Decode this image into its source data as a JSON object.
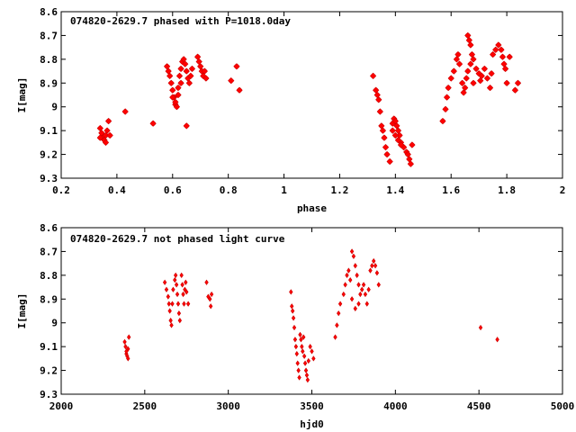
{
  "chart_data": [
    {
      "type": "scatter",
      "title": "074820-2629.7 phased with P=1018.0day",
      "xlabel": "phase",
      "ylabel": "I[mag]",
      "xlim": [
        0.2,
        2.0
      ],
      "ylim": [
        8.6,
        9.3
      ],
      "y_inverted": true,
      "xticks": [
        0.2,
        0.4,
        0.6,
        0.8,
        1,
        1.2,
        1.4,
        1.6,
        1.8,
        2
      ],
      "xtick_labels": [
        "0.2",
        "0.4",
        "0.6",
        "0.8",
        "1",
        "1.2",
        "1.4",
        "1.6",
        "1.8",
        "2"
      ],
      "yticks": [
        8.6,
        8.7,
        8.8,
        8.9,
        9.0,
        9.1,
        9.2,
        9.3
      ],
      "ytick_labels": [
        "8.6",
        "8.7",
        "8.8",
        "8.9",
        "9",
        "9.1",
        "9.2",
        "9.3"
      ],
      "color": "#ff0000",
      "series": [
        {
          "x": [
            0.34,
            0.345,
            0.35,
            0.355,
            0.36,
            0.365,
            0.37,
            0.34,
            0.36,
            0.375,
            0.43,
            0.53,
            0.58,
            0.585,
            0.59,
            0.595,
            0.6,
            0.605,
            0.61,
            0.615,
            0.62,
            0.625,
            0.63,
            0.635,
            0.64,
            0.645,
            0.65,
            0.655,
            0.66,
            0.665,
            0.67,
            0.6,
            0.61,
            0.62,
            0.63,
            0.65,
            0.69,
            0.695,
            0.7,
            0.705,
            0.71,
            0.715,
            0.72,
            0.81,
            0.83,
            0.84,
            1.32,
            1.33,
            1.335,
            1.34,
            1.345,
            1.35,
            1.355,
            1.36,
            1.365,
            1.37,
            1.38,
            1.39,
            1.395,
            1.4,
            1.405,
            1.41,
            1.415,
            1.42,
            1.43,
            1.44,
            1.445,
            1.45,
            1.455,
            1.46,
            1.39,
            1.4,
            1.41,
            1.42,
            1.57,
            1.58,
            1.585,
            1.59,
            1.6,
            1.61,
            1.62,
            1.625,
            1.63,
            1.64,
            1.645,
            1.65,
            1.655,
            1.66,
            1.665,
            1.67,
            1.675,
            1.68,
            1.69,
            1.7,
            1.705,
            1.71,
            1.72,
            1.73,
            1.74,
            1.745,
            1.75,
            1.76,
            1.77,
            1.78,
            1.785,
            1.79,
            1.795,
            1.8,
            1.81,
            1.83,
            1.84,
            1.66,
            1.67,
            1.68
          ],
          "y": [
            9.09,
            9.11,
            9.13,
            9.14,
            9.12,
            9.1,
            9.06,
            9.13,
            9.15,
            9.12,
            9.02,
            9.07,
            8.83,
            8.85,
            8.87,
            8.9,
            8.93,
            8.96,
            8.99,
            9.0,
            8.92,
            8.87,
            8.84,
            8.81,
            8.8,
            8.82,
            8.85,
            8.88,
            8.9,
            8.87,
            8.84,
            8.96,
            8.98,
            8.95,
            8.9,
            9.08,
            8.79,
            8.81,
            8.83,
            8.85,
            8.87,
            8.85,
            8.88,
            8.89,
            8.83,
            8.93,
            8.87,
            8.93,
            8.95,
            8.97,
            9.02,
            9.08,
            9.1,
            9.13,
            9.17,
            9.2,
            9.23,
            9.07,
            9.05,
            9.06,
            9.08,
            9.1,
            9.12,
            9.15,
            9.17,
            9.19,
            9.2,
            9.22,
            9.24,
            9.16,
            9.1,
            9.12,
            9.14,
            9.16,
            9.06,
            9.01,
            8.96,
            8.92,
            8.88,
            8.85,
            8.8,
            8.78,
            8.82,
            8.9,
            8.94,
            8.92,
            8.88,
            8.7,
            8.72,
            8.74,
            8.78,
            8.8,
            8.84,
            8.86,
            8.89,
            8.87,
            8.84,
            8.88,
            8.92,
            8.86,
            8.78,
            8.76,
            8.74,
            8.76,
            8.79,
            8.82,
            8.84,
            8.9,
            8.79,
            8.93,
            8.9,
            8.85,
            8.82,
            8.9
          ],
          "marker": "star"
        }
      ]
    },
    {
      "type": "scatter",
      "title": "074820-2629.7 not phased light curve",
      "xlabel": "hjd0",
      "ylabel": "I[mag]",
      "xlim": [
        2000,
        5000
      ],
      "ylim": [
        8.6,
        9.3
      ],
      "y_inverted": true,
      "xticks": [
        2000,
        2500,
        3000,
        3500,
        4000,
        4500,
        5000
      ],
      "xtick_labels": [
        "2000",
        "2500",
        "3000",
        "3500",
        "4000",
        "4500",
        "5000"
      ],
      "yticks": [
        8.6,
        8.7,
        8.8,
        8.9,
        9.0,
        9.1,
        9.2,
        9.3
      ],
      "ytick_labels": [
        "8.6",
        "8.7",
        "8.8",
        "8.9",
        "9",
        "9.1",
        "9.2",
        "9.3"
      ],
      "color": "#ff0000",
      "series": [
        {
          "x": [
            2380,
            2385,
            2390,
            2395,
            2400,
            2405,
            2390,
            2400,
            2620,
            2630,
            2640,
            2645,
            2650,
            2655,
            2660,
            2665,
            2670,
            2680,
            2685,
            2690,
            2695,
            2700,
            2705,
            2710,
            2720,
            2725,
            2730,
            2735,
            2740,
            2745,
            2750,
            2760,
            2870,
            2880,
            2890,
            2895,
            2900,
            3375,
            3380,
            3385,
            3390,
            3395,
            3400,
            3405,
            3410,
            3415,
            3420,
            3425,
            3430,
            3435,
            3440,
            3445,
            3450,
            3455,
            3460,
            3465,
            3470,
            3475,
            3480,
            3490,
            3500,
            3510,
            3640,
            3650,
            3660,
            3670,
            3690,
            3700,
            3710,
            3720,
            3730,
            3740,
            3750,
            3760,
            3770,
            3780,
            3790,
            3800,
            3810,
            3820,
            3830,
            3840,
            3850,
            3860,
            3870,
            3880,
            3890,
            3900,
            3740,
            3760,
            3780,
            4510,
            4610
          ],
          "y": [
            9.08,
            9.1,
            9.13,
            9.14,
            9.11,
            9.06,
            9.12,
            9.15,
            8.83,
            8.86,
            8.89,
            8.92,
            8.95,
            8.99,
            9.01,
            8.92,
            8.86,
            8.82,
            8.8,
            8.84,
            8.88,
            8.92,
            8.96,
            8.99,
            8.8,
            8.84,
            8.88,
            8.92,
            8.86,
            8.83,
            8.87,
            8.92,
            8.83,
            8.89,
            8.9,
            8.93,
            8.88,
            8.87,
            8.93,
            8.95,
            8.98,
            9.02,
            9.07,
            9.1,
            9.13,
            9.17,
            9.2,
            9.23,
            9.05,
            9.07,
            9.1,
            9.12,
            9.06,
            9.14,
            9.17,
            9.2,
            9.22,
            9.24,
            9.16,
            9.1,
            9.12,
            9.15,
            9.06,
            9.01,
            8.96,
            8.92,
            8.88,
            8.84,
            8.8,
            8.78,
            8.82,
            8.7,
            8.72,
            8.76,
            8.8,
            8.84,
            8.88,
            8.86,
            8.84,
            8.88,
            8.92,
            8.86,
            8.78,
            8.76,
            8.74,
            8.76,
            8.79,
            8.84,
            8.9,
            8.94,
            8.92,
            9.02,
            9.07
          ],
          "marker": "diamond"
        }
      ]
    }
  ]
}
